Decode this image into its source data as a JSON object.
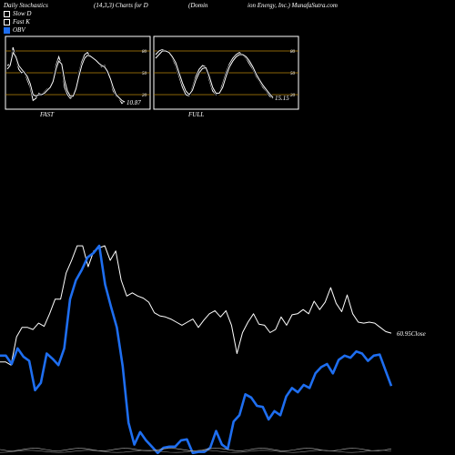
{
  "header": {
    "left": "Daily Stochastics",
    "mid": "(14,3,3) Charts for D",
    "right1": "(Domin",
    "right2": "ion  Energy, Inc.) MunafaSutra.com"
  },
  "legend": [
    {
      "label": "Slow  D",
      "color": "#ffffff",
      "filled": false
    },
    {
      "label": "Fast K",
      "color": "#ffffff",
      "filled": false
    },
    {
      "label": "OBV",
      "color": "#1e6ef0",
      "filled": true
    }
  ],
  "colors": {
    "background": "#000000",
    "price": "#ffffff",
    "obv": "#1e6ef0",
    "level": "#b8860b"
  },
  "chart_data": [
    {
      "type": "line",
      "panel": "FAST",
      "label": "FAST",
      "levels": [
        20,
        50,
        80
      ],
      "ylim": [
        0,
        100
      ],
      "last_value_label": "10.87",
      "series": [
        {
          "name": "Fast K",
          "values": [
            60,
            62,
            85,
            70,
            55,
            50,
            52,
            40,
            30,
            12,
            15,
            22,
            20,
            24,
            28,
            30,
            40,
            60,
            72,
            60,
            30,
            20,
            15,
            18,
            30,
            50,
            65,
            75,
            78,
            72,
            70,
            66,
            62,
            58,
            60,
            50,
            40,
            25,
            18,
            15,
            8,
            11
          ]
        },
        {
          "name": "Slow  D",
          "values": [
            55,
            60,
            78,
            72,
            60,
            55,
            50,
            45,
            35,
            20,
            18,
            20,
            20,
            22,
            26,
            30,
            38,
            55,
            66,
            62,
            40,
            25,
            18,
            18,
            28,
            45,
            60,
            70,
            74,
            73,
            70,
            67,
            63,
            60,
            58,
            52,
            42,
            30,
            20,
            16,
            12,
            10
          ]
        }
      ]
    },
    {
      "type": "line",
      "panel": "FULL",
      "label": "FULL",
      "levels": [
        20,
        50,
        80
      ],
      "ylim": [
        0,
        100
      ],
      "last_value_label": "15.15",
      "series": [
        {
          "name": "Fast K",
          "values": [
            75,
            80,
            82,
            80,
            78,
            70,
            60,
            45,
            30,
            20,
            18,
            30,
            45,
            55,
            60,
            58,
            40,
            25,
            20,
            22,
            35,
            50,
            62,
            70,
            75,
            78,
            74,
            70,
            62,
            55,
            45,
            38,
            30,
            25,
            18,
            15
          ]
        },
        {
          "name": "Slow  D",
          "values": [
            70,
            75,
            80,
            80,
            78,
            72,
            64,
            50,
            36,
            25,
            20,
            26,
            40,
            50,
            56,
            57,
            45,
            30,
            22,
            22,
            30,
            45,
            58,
            66,
            72,
            75,
            75,
            72,
            66,
            58,
            48,
            40,
            33,
            27,
            21,
            16
          ]
        }
      ]
    },
    {
      "type": "line",
      "panel": "main",
      "last_value_label": "60.95",
      "last_value_suffix": "Close",
      "series": [
        {
          "name": "Close",
          "values": [
            58.2,
            58.2,
            57.9,
            60.6,
            61.5,
            61.5,
            61.3,
            61.9,
            61.6,
            62.8,
            64.2,
            64.2,
            66.7,
            67.9,
            69.3,
            69.3,
            67.3,
            68.8,
            69.1,
            69.3,
            67.9,
            68.8,
            66.0,
            64.5,
            64.8,
            64.5,
            64.3,
            63.9,
            62.9,
            62.6,
            62.5,
            62.3,
            62.0,
            61.7,
            62.0,
            62.3,
            61.5,
            62.2,
            62.8,
            63.1,
            62.5,
            63.1,
            61.7,
            59.0,
            61.0,
            62.0,
            62.8,
            61.8,
            61.7,
            61.0,
            61.3,
            62.5,
            61.7,
            62.7,
            62.8,
            63.2,
            62.8,
            64.0,
            63.2,
            63.9,
            65.3,
            63.8,
            63.0,
            64.6,
            62.8,
            62.0,
            61.9,
            62.0,
            61.9,
            61.5,
            61.1,
            60.95
          ]
        },
        {
          "name": "OBV",
          "values": [
            58.8,
            58.8,
            58.0,
            59.5,
            58.7,
            58.3,
            55.5,
            56.2,
            59.0,
            58.5,
            57.9,
            59.5,
            64.2,
            66.0,
            67.0,
            68.2,
            68.6,
            69.3,
            65.6,
            63.5,
            61.5,
            57.8,
            52.4,
            50.3,
            51.5,
            50.7,
            50.1,
            49.5,
            50.0,
            50.1,
            50.1,
            50.7,
            50.8,
            49.5,
            49.6,
            49.6,
            50.0,
            51.6,
            50.3,
            49.9,
            52.5,
            53.1,
            55.1,
            54.8,
            54.0,
            53.9,
            52.7,
            53.5,
            53.1,
            54.9,
            55.7,
            55.3,
            56.0,
            55.7,
            57.1,
            57.7,
            58.0,
            57.1,
            58.4,
            58.8,
            58.6,
            59.2,
            59.0,
            58.3,
            58.8,
            58.9,
            57.4,
            55.9
          ]
        }
      ]
    }
  ]
}
